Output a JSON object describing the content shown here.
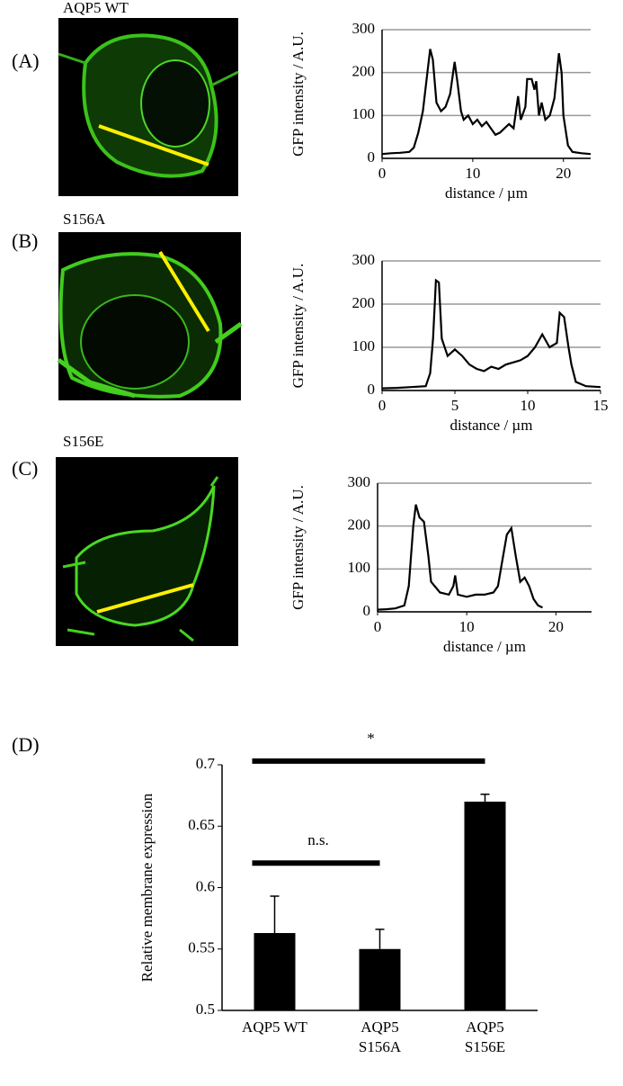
{
  "chart_data": [
    {
      "type": "line",
      "panel": "(A)",
      "image_label": "AQP5 WT",
      "y_label": "GFP intensity / A.U.",
      "x_label": "distance / µm",
      "x": [
        0,
        1,
        2,
        3,
        3.5,
        4,
        4.5,
        5,
        5.3,
        5.6,
        6,
        6.5,
        7,
        7.5,
        8,
        8.3,
        8.7,
        9,
        9.5,
        10,
        10.5,
        11,
        11.5,
        12,
        12.5,
        13,
        13.5,
        14,
        14.5,
        15,
        15.3,
        15.8,
        16,
        16.5,
        16.8,
        17,
        17.3,
        17.6,
        18,
        18.5,
        19,
        19.5,
        19.8,
        20,
        20.5,
        21,
        22,
        23
      ],
      "values": [
        10,
        12,
        13,
        15,
        25,
        60,
        110,
        200,
        255,
        230,
        130,
        110,
        120,
        150,
        225,
        180,
        110,
        90,
        100,
        80,
        90,
        75,
        85,
        70,
        55,
        60,
        70,
        80,
        70,
        145,
        90,
        120,
        185,
        185,
        160,
        180,
        100,
        130,
        90,
        100,
        140,
        245,
        200,
        100,
        30,
        15,
        12,
        10
      ],
      "color": "#000000",
      "xlim": [
        0,
        23
      ],
      "xticks": [
        0,
        10,
        20
      ],
      "ylim": [
        0,
        300
      ],
      "yticks": [
        0,
        100,
        200,
        300
      ],
      "grid": true
    },
    {
      "type": "line",
      "panel": "(B)",
      "image_label": "S156A",
      "y_label": "GFP intensity / A.U.",
      "x_label": "distance / µm",
      "x": [
        0,
        1,
        2,
        3,
        3.3,
        3.5,
        3.7,
        3.9,
        4.1,
        4.5,
        5,
        5.5,
        6,
        6.5,
        7,
        7.5,
        8,
        8.5,
        9,
        9.5,
        10,
        10.5,
        11,
        11.5,
        12,
        12.2,
        12.5,
        12.8,
        13,
        13.3,
        14,
        15
      ],
      "values": [
        5,
        6,
        8,
        10,
        40,
        120,
        255,
        250,
        120,
        80,
        95,
        80,
        60,
        50,
        45,
        55,
        50,
        60,
        65,
        70,
        80,
        100,
        130,
        100,
        110,
        180,
        170,
        100,
        60,
        20,
        10,
        8
      ],
      "color": "#000000",
      "xlim": [
        0,
        15
      ],
      "xticks": [
        0,
        5,
        10,
        15
      ],
      "ylim": [
        0,
        300
      ],
      "yticks": [
        0,
        100,
        200,
        300
      ],
      "grid": true
    },
    {
      "type": "line",
      "panel": "(C)",
      "image_label": "S156E",
      "y_label": "GFP intensity / A.U.",
      "x_label": "distance / µm",
      "x": [
        0,
        1,
        2,
        3,
        3.5,
        4,
        4.3,
        4.7,
        5.2,
        5.7,
        6,
        7,
        8,
        8.5,
        8.7,
        9,
        10,
        11,
        12,
        13,
        13.5,
        14,
        14.5,
        15,
        15.5,
        16,
        16.5,
        17,
        17.5,
        18,
        18.5
      ],
      "values": [
        5,
        6,
        8,
        15,
        60,
        200,
        250,
        220,
        210,
        130,
        70,
        45,
        40,
        60,
        85,
        40,
        35,
        40,
        40,
        45,
        60,
        120,
        180,
        195,
        130,
        70,
        80,
        60,
        30,
        15,
        10
      ],
      "color": "#000000",
      "xlim": [
        0,
        24
      ],
      "xticks": [
        0,
        10,
        20
      ],
      "ylim": [
        0,
        300
      ],
      "yticks": [
        0,
        100,
        200,
        300
      ],
      "grid": true
    },
    {
      "type": "bar",
      "panel": "(D)",
      "y_label": "Relative membrane expression",
      "categories": [
        "AQP5 WT",
        "AQP5\nS156A",
        "AQP5\nS156E"
      ],
      "values": [
        0.563,
        0.55,
        0.67
      ],
      "errors": [
        0.03,
        0.016,
        0.006
      ],
      "color": "#000000",
      "ylim": [
        0.5,
        0.7
      ],
      "yticks": [
        0.5,
        0.55,
        0.6,
        0.65,
        0.7
      ],
      "grid": false,
      "annotations": [
        "n.s.",
        "*"
      ]
    }
  ]
}
